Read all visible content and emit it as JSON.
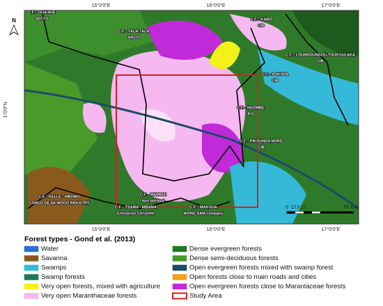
{
  "map": {
    "north_label": "N",
    "top_ticks": [
      "15°0'0\"E",
      "16°0'0\"E",
      "17°0'0\"E"
    ],
    "bottom_ticks": [
      "15°0'0\"E",
      "16°0'0\"E",
      "17°0'0\"E"
    ],
    "left_ticks": [
      "1°0'0\"N"
    ],
    "concessions": [
      {
        "name": "C.F. - OUA-IKIE",
        "company": "SEFYD"
      },
      {
        "name": "C.F. - TALA-TALA",
        "company": "SIFCO"
      },
      {
        "name": "C.F. - KABO",
        "company": "CIB"
      },
      {
        "name": "C.F. - LOUNDOUNGOU-TOUKOULAKA",
        "company": "CIB"
      },
      {
        "name": "C.F. - POKOLA",
        "company": "CIB"
      },
      {
        "name": "C.F. - NGOMBE",
        "company": "IFO"
      },
      {
        "name": "C.F. - PIKOUNDA NORD",
        "company": "CIB"
      },
      {
        "name": "C.F. - KELLE - MBOMO",
        "company": "CONGO DEJIA WOOD INDUSTRY"
      },
      {
        "name": "C.F. - MAMBILI",
        "company": "Non attribué"
      },
      {
        "name": "C.F. - TSAMA - MBAMA",
        "company": "Entreprise Christelle"
      },
      {
        "name": "C.F. - MAKOUA",
        "company": "WONG SAM company"
      }
    ],
    "scale_ticks": [
      "0",
      "12.5",
      "25",
      "50 Km"
    ]
  },
  "legend": {
    "title": "Forest types - Gond et al. (2013)",
    "items": [
      {
        "label": "Water",
        "color": "#2a6fd6"
      },
      {
        "label": "Savanna",
        "color": "#8a5a1c"
      },
      {
        "label": "Swamps",
        "color": "#35b9d8"
      },
      {
        "label": "Swamp forests",
        "color": "#1f7a55"
      },
      {
        "label": "Very open forests, mixed with agriculture",
        "color": "#f2f21a"
      },
      {
        "label": "Very open Maranthaceae forests",
        "color": "#f5b8f0"
      },
      {
        "label": "Dense evergreen forests",
        "color": "#1e7a1e"
      },
      {
        "label": "Dense semi-deciduous forests",
        "color": "#4a9a2a"
      },
      {
        "label": "Open evergreen forests mixed with swamp forest",
        "color": "#1c4a6a"
      },
      {
        "label": "Open forests close to main roads and cities",
        "color": "#f0a020"
      },
      {
        "label": "Open evergreen forests close to Marantaceae forests",
        "color": "#c02ad8"
      },
      {
        "label": "Study Area",
        "color": "#d42020"
      }
    ]
  }
}
